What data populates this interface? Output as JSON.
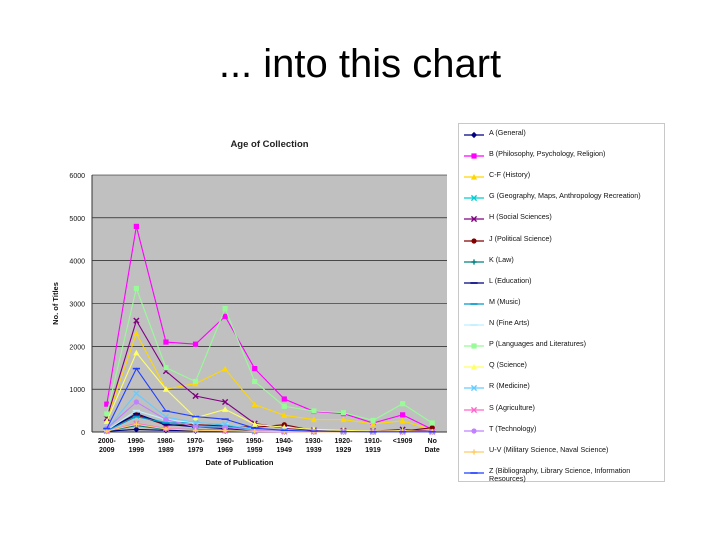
{
  "slide": {
    "title": "... into this chart"
  },
  "chart_data": {
    "type": "line",
    "title": "Age of Collection",
    "xlabel": "Date of Publication",
    "ylabel": "No. of Titles",
    "ylim": [
      0,
      6000
    ],
    "yticks": [
      0,
      1000,
      2000,
      3000,
      4000,
      5000,
      6000
    ],
    "grid": true,
    "legend_position": "right",
    "categories": [
      [
        "2000-",
        "2009"
      ],
      [
        "1990-",
        "1999"
      ],
      [
        "1980-",
        "1989"
      ],
      [
        "1970-",
        "1979"
      ],
      [
        "1960-",
        "1969"
      ],
      [
        "1950-",
        "1959"
      ],
      [
        "1940-",
        "1949"
      ],
      [
        "1930-",
        "1939"
      ],
      [
        "1920-",
        "1929"
      ],
      [
        "1910-",
        "1919"
      ],
      [
        "<1909",
        ""
      ],
      [
        "No",
        "Date"
      ]
    ],
    "series": [
      {
        "name": "A (General)",
        "color": "#000080",
        "marker": "diamond",
        "values": [
          20,
          60,
          40,
          30,
          25,
          15,
          10,
          5,
          5,
          5,
          5,
          5
        ]
      },
      {
        "name": "B (Philosophy, Psychology, Religion)",
        "color": "#ff00ff",
        "marker": "square",
        "values": [
          650,
          4800,
          2100,
          2050,
          2700,
          1480,
          770,
          480,
          430,
          210,
          400,
          60
        ]
      },
      {
        "name": "C-F (History)",
        "color": "#ffd700",
        "marker": "triangle",
        "values": [
          300,
          2300,
          1000,
          1130,
          1470,
          640,
          390,
          290,
          290,
          190,
          260,
          50
        ]
      },
      {
        "name": "G (Geography, Maps, Anthropology Recreation)",
        "color": "#00ced1",
        "marker": "x",
        "values": [
          40,
          380,
          220,
          130,
          130,
          40,
          20,
          10,
          10,
          5,
          10,
          5
        ]
      },
      {
        "name": "H (Social Sciences)",
        "color": "#800080",
        "marker": "x",
        "values": [
          320,
          2600,
          1420,
          840,
          700,
          200,
          90,
          40,
          30,
          20,
          60,
          10
        ]
      },
      {
        "name": "J (Political Science)",
        "color": "#800000",
        "marker": "circle",
        "values": [
          50,
          400,
          160,
          170,
          140,
          110,
          170,
          30,
          20,
          10,
          20,
          100
        ]
      },
      {
        "name": "K (Law)",
        "color": "#008080",
        "marker": "plus",
        "values": [
          20,
          150,
          60,
          60,
          40,
          20,
          10,
          5,
          5,
          5,
          5,
          5
        ]
      },
      {
        "name": "L (Education)",
        "color": "#000080",
        "marker": "dash",
        "values": [
          40,
          430,
          180,
          120,
          80,
          30,
          20,
          10,
          10,
          5,
          5,
          5
        ]
      },
      {
        "name": "M (Music)",
        "color": "#0099cc",
        "marker": "dash",
        "values": [
          30,
          360,
          210,
          220,
          160,
          50,
          30,
          15,
          10,
          5,
          5,
          5
        ]
      },
      {
        "name": "N (Fine Arts)",
        "color": "#bfefff",
        "marker": "dash",
        "values": [
          40,
          500,
          290,
          210,
          180,
          70,
          30,
          15,
          10,
          5,
          5,
          5
        ]
      },
      {
        "name": "P (Languages and Literatures)",
        "color": "#98fb98",
        "marker": "square",
        "values": [
          420,
          3350,
          1500,
          1180,
          2880,
          1180,
          600,
          490,
          450,
          270,
          660,
          210
        ]
      },
      {
        "name": "Q (Science)",
        "color": "#ffff66",
        "marker": "triangle",
        "values": [
          250,
          1850,
          1000,
          330,
          530,
          180,
          110,
          60,
          40,
          20,
          30,
          5
        ]
      },
      {
        "name": "R (Medicine)",
        "color": "#66ccff",
        "marker": "x",
        "values": [
          60,
          900,
          350,
          220,
          180,
          60,
          30,
          15,
          10,
          5,
          5,
          5
        ]
      },
      {
        "name": "S (Agriculture)",
        "color": "#ff66cc",
        "marker": "x",
        "values": [
          20,
          200,
          80,
          50,
          30,
          10,
          5,
          5,
          5,
          5,
          5,
          5
        ]
      },
      {
        "name": "T (Technology)",
        "color": "#c080ff",
        "marker": "circle",
        "values": [
          80,
          700,
          290,
          120,
          110,
          40,
          20,
          10,
          5,
          5,
          5,
          5
        ]
      },
      {
        "name": "U-V (Military Science, Naval Science)",
        "color": "#ffcc66",
        "marker": "plus",
        "values": [
          20,
          180,
          70,
          40,
          30,
          20,
          10,
          5,
          5,
          5,
          5,
          5
        ]
      },
      {
        "name": "Z (Bibliography, Library Science, Information Resources)",
        "color": "#1f3fff",
        "marker": "dash",
        "values": [
          80,
          1480,
          490,
          360,
          300,
          90,
          40,
          20,
          10,
          5,
          5,
          5
        ]
      }
    ]
  }
}
